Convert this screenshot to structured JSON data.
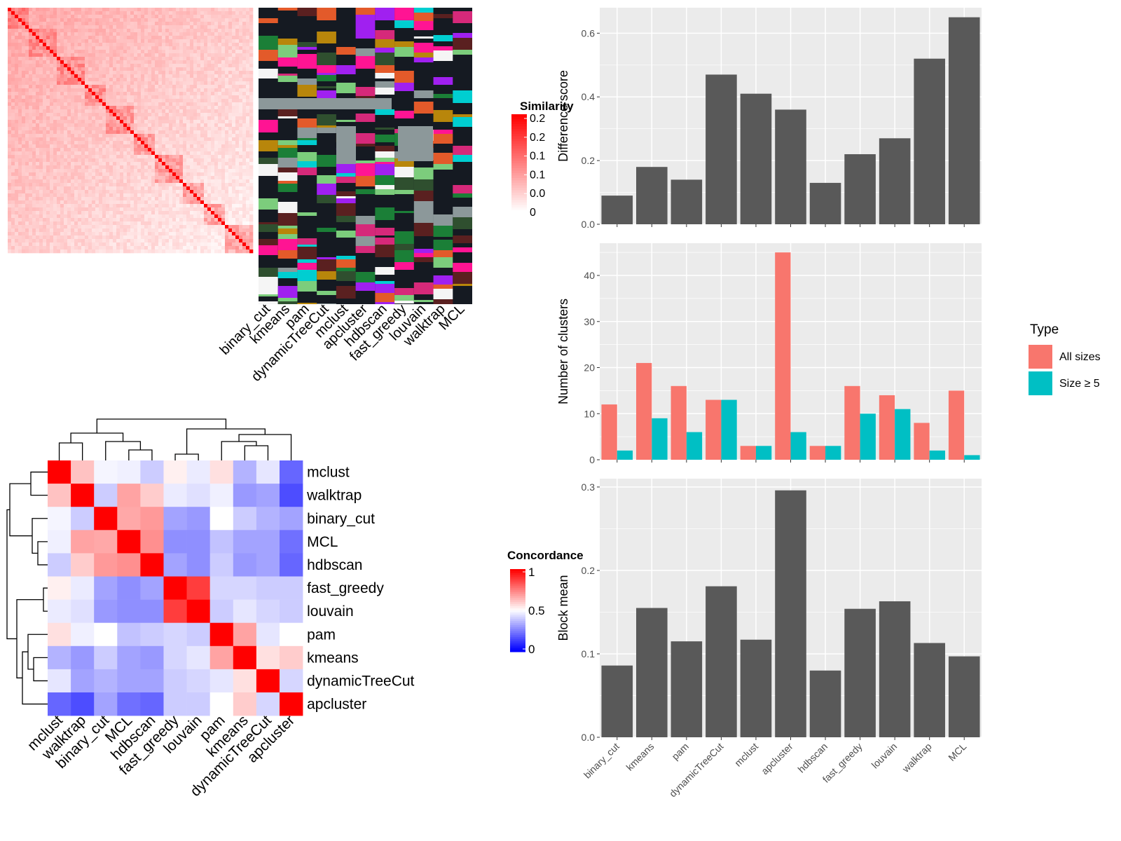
{
  "methods": [
    "binary_cut",
    "kmeans",
    "pam",
    "dynamicTreeCut",
    "mclust",
    "apcluster",
    "hdbscan",
    "fast_greedy",
    "louvain",
    "walktrap",
    "MCL"
  ],
  "similarity_legend": {
    "title": "Similarity",
    "labels": [
      "0.2",
      "0.2",
      "0.1",
      "0.1",
      "0.0",
      "0"
    ]
  },
  "concordance_legend": {
    "title": "Concordance",
    "labels": [
      "1",
      "0.5",
      "0"
    ]
  },
  "concordance_order": [
    "mclust",
    "walktrap",
    "binary_cut",
    "MCL",
    "hdbscan",
    "fast_greedy",
    "louvain",
    "pam",
    "kmeans",
    "dynamicTreeCut",
    "apcluster"
  ],
  "type_legend": {
    "title": "Type",
    "items": [
      "All sizes",
      "Size ≥ 5"
    ]
  },
  "colors": {
    "bar_gray": "#595959",
    "panel_bg": "#EBEBEB",
    "all_sizes": "#F8766D",
    "size_ge5": "#00BFC4",
    "heat_red": "#FF0000",
    "heat_blue": "#0000FF",
    "class_bg": "#151A22"
  },
  "chart_data": [
    {
      "type": "heatmap",
      "title": "",
      "legend_title": "Similarity",
      "legend_labels": [
        "0.2",
        "0.2",
        "0.1",
        "0.1",
        "0.0",
        "0"
      ],
      "description_values": "term similarity matrix, diagonal blocks of high similarity"
    },
    {
      "type": "heatmap",
      "title": "",
      "columns": [
        "binary_cut",
        "kmeans",
        "pam",
        "dynamicTreeCut",
        "mclust",
        "apcluster",
        "hdbscan",
        "fast_greedy",
        "louvain",
        "walktrap",
        "MCL"
      ]
    },
    {
      "type": "bar",
      "categories": [
        "binary_cut",
        "kmeans",
        "pam",
        "dynamicTreeCut",
        "mclust",
        "apcluster",
        "hdbscan",
        "fast_greedy",
        "louvain",
        "walktrap",
        "MCL"
      ],
      "values": [
        0.09,
        0.18,
        0.14,
        0.47,
        0.41,
        0.36,
        0.13,
        0.22,
        0.27,
        0.52,
        0.65
      ],
      "ylabel": "Difference score",
      "ylim": [
        0,
        0.68
      ],
      "yticks": [
        "0.0",
        "0.2",
        "0.4",
        "0.6"
      ]
    },
    {
      "type": "bar",
      "categories": [
        "binary_cut",
        "kmeans",
        "pam",
        "dynamicTreeCut",
        "mclust",
        "apcluster",
        "hdbscan",
        "fast_greedy",
        "louvain",
        "walktrap",
        "MCL"
      ],
      "series": [
        {
          "name": "All sizes",
          "values": [
            12,
            21,
            16,
            13,
            3,
            45,
            3,
            16,
            14,
            8,
            15
          ]
        },
        {
          "name": "Size ≥ 5",
          "values": [
            2,
            9,
            6,
            13,
            3,
            6,
            3,
            10,
            11,
            2,
            1
          ]
        }
      ],
      "ylabel": "Number of clusters",
      "ylim": [
        0,
        47
      ],
      "yticks": [
        "0",
        "10",
        "20",
        "30",
        "40"
      ],
      "legend": "right"
    },
    {
      "type": "bar",
      "categories": [
        "binary_cut",
        "kmeans",
        "pam",
        "dynamicTreeCut",
        "mclust",
        "apcluster",
        "hdbscan",
        "fast_greedy",
        "louvain",
        "walktrap",
        "MCL"
      ],
      "values": [
        0.086,
        0.155,
        0.115,
        0.181,
        0.117,
        0.296,
        0.08,
        0.154,
        0.163,
        0.113,
        0.097
      ],
      "ylabel": "Block mean",
      "ylim": [
        0,
        0.31
      ],
      "yticks": [
        "0.0",
        "0.1",
        "0.2",
        "0.3"
      ]
    },
    {
      "type": "heatmap",
      "rows": [
        "mclust",
        "walktrap",
        "binary_cut",
        "MCL",
        "hdbscan",
        "fast_greedy",
        "louvain",
        "pam",
        "kmeans",
        "dynamicTreeCut",
        "apcluster"
      ],
      "columns": [
        "mclust",
        "walktrap",
        "binary_cut",
        "MCL",
        "hdbscan",
        "fast_greedy",
        "louvain",
        "pam",
        "kmeans",
        "dynamicTreeCut",
        "apcluster"
      ],
      "legend_title": "Concordance",
      "legend_labels": [
        "1",
        "0.5",
        "0"
      ],
      "values": [
        [
          1.0,
          0.62,
          0.48,
          0.47,
          0.4,
          0.53,
          0.46,
          0.56,
          0.35,
          0.45,
          0.2
        ],
        [
          0.62,
          1.0,
          0.4,
          0.68,
          0.6,
          0.46,
          0.44,
          0.47,
          0.3,
          0.32,
          0.15
        ],
        [
          0.48,
          0.4,
          1.0,
          0.67,
          0.7,
          0.32,
          0.3,
          0.5,
          0.4,
          0.35,
          0.32
        ],
        [
          0.47,
          0.68,
          0.67,
          1.0,
          0.72,
          0.28,
          0.28,
          0.38,
          0.32,
          0.32,
          0.22
        ],
        [
          0.4,
          0.6,
          0.7,
          0.72,
          1.0,
          0.32,
          0.28,
          0.4,
          0.3,
          0.32,
          0.2
        ],
        [
          0.53,
          0.46,
          0.32,
          0.28,
          0.32,
          1.0,
          0.88,
          0.42,
          0.42,
          0.4,
          0.4
        ],
        [
          0.46,
          0.44,
          0.3,
          0.28,
          0.28,
          0.88,
          1.0,
          0.4,
          0.45,
          0.42,
          0.4
        ],
        [
          0.56,
          0.47,
          0.5,
          0.38,
          0.4,
          0.42,
          0.4,
          1.0,
          0.68,
          0.45,
          0.5
        ],
        [
          0.35,
          0.3,
          0.4,
          0.32,
          0.3,
          0.42,
          0.45,
          0.68,
          1.0,
          0.56,
          0.6
        ],
        [
          0.45,
          0.32,
          0.35,
          0.32,
          0.32,
          0.4,
          0.42,
          0.45,
          0.56,
          1.0,
          0.42
        ],
        [
          0.2,
          0.15,
          0.32,
          0.22,
          0.2,
          0.4,
          0.4,
          0.5,
          0.6,
          0.42,
          1.0
        ]
      ]
    }
  ]
}
